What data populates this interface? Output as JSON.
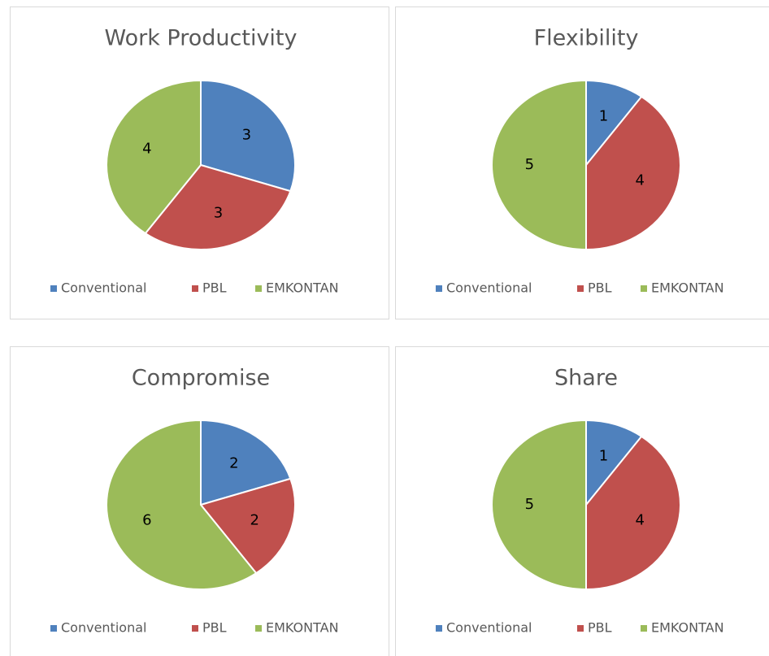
{
  "chart_data": [
    {
      "type": "pie",
      "title": "Work Productivity",
      "categories": [
        "Conventional",
        "PBL",
        "EMKONTAN"
      ],
      "values": [
        3,
        3,
        4
      ],
      "colors": [
        "#4f81bd",
        "#c0504d",
        "#9bbb59"
      ],
      "legend": "bottom"
    },
    {
      "type": "pie",
      "title": "Flexibility",
      "categories": [
        "Conventional",
        "PBL",
        "EMKONTAN"
      ],
      "values": [
        1,
        4,
        5
      ],
      "colors": [
        "#4f81bd",
        "#c0504d",
        "#9bbb59"
      ],
      "legend": "bottom"
    },
    {
      "type": "pie",
      "title": "Compromise",
      "categories": [
        "Conventional",
        "PBL",
        "EMKONTAN"
      ],
      "values": [
        2,
        2,
        6
      ],
      "colors": [
        "#4f81bd",
        "#c0504d",
        "#9bbb59"
      ],
      "legend": "bottom"
    },
    {
      "type": "pie",
      "title": "Share",
      "categories": [
        "Conventional",
        "PBL",
        "EMKONTAN"
      ],
      "values": [
        1,
        4,
        5
      ],
      "colors": [
        "#4f81bd",
        "#c0504d",
        "#9bbb59"
      ],
      "legend": "bottom"
    }
  ]
}
